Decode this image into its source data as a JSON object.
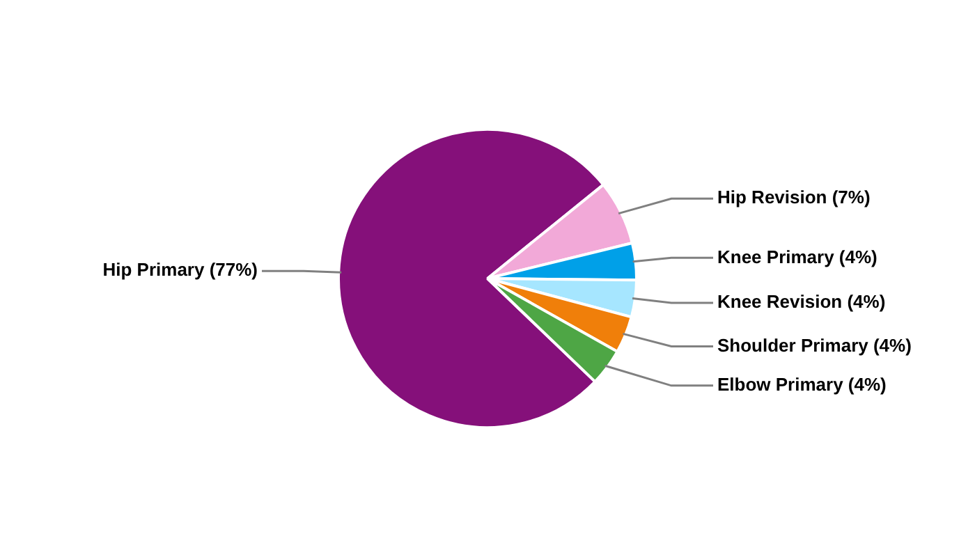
{
  "chart_data": {
    "type": "pie",
    "categories": [
      "Hip Primary",
      "Hip Revision",
      "Knee Primary",
      "Knee Revision",
      "Shoulder Primary",
      "Elbow Primary"
    ],
    "values": [
      77,
      7,
      4,
      4,
      4,
      4
    ],
    "value_labels": [
      "(77%)",
      "(7%)",
      "(4%)",
      "(4%)",
      "(4%)",
      "(4%)"
    ],
    "colors": [
      "#85107a",
      "#f2a9d8",
      "#00a0e8",
      "#a6e6ff",
      "#f07f0a",
      "#4ea645"
    ],
    "legend": false
  }
}
